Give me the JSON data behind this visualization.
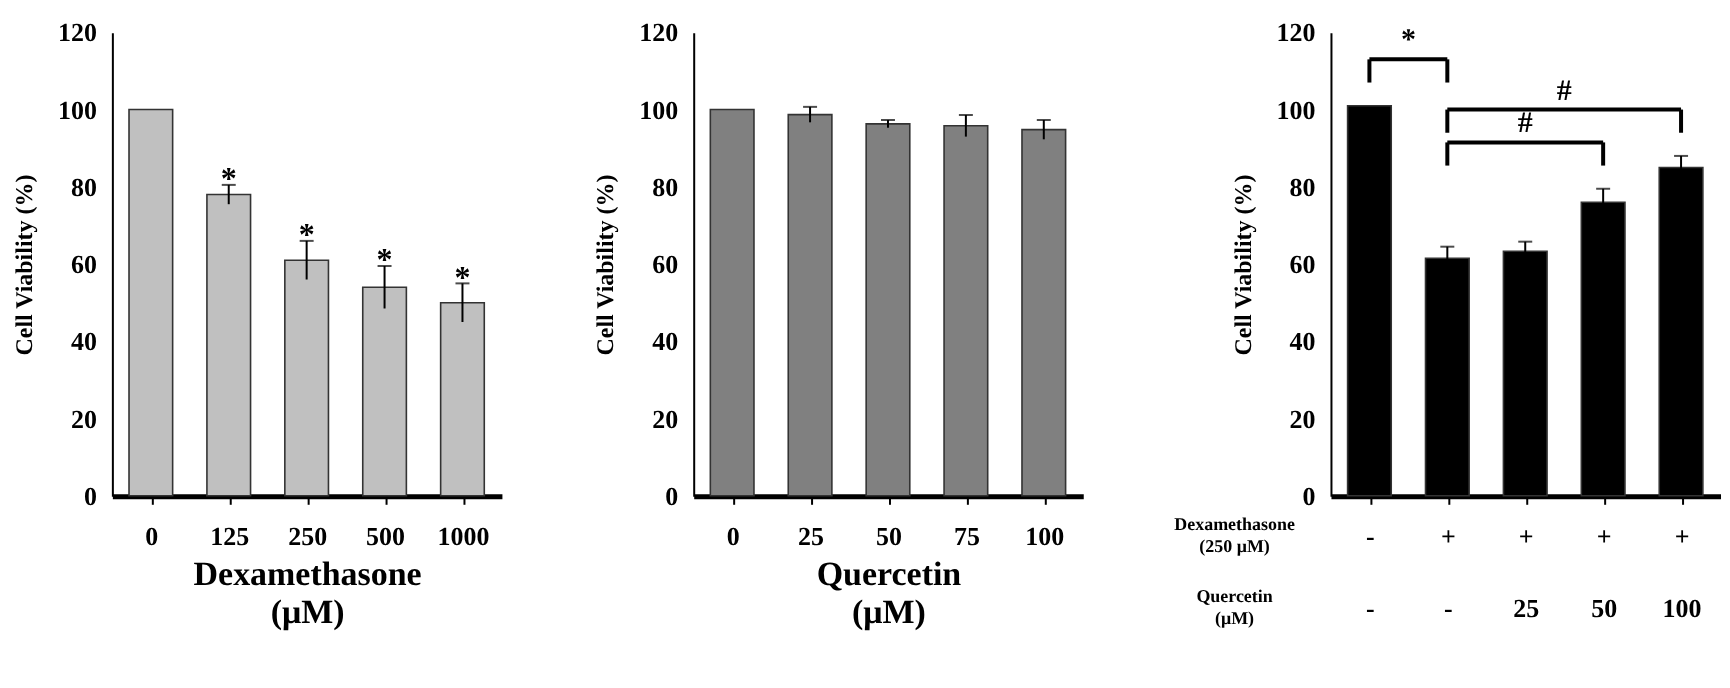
{
  "chart_data": [
    {
      "type": "bar",
      "categories": [
        "0",
        "125",
        "250",
        "500",
        "1000"
      ],
      "xlabel": "Dexamethasone\n(μM)",
      "ylabel": "Cell Viability (%)",
      "values": [
        100,
        78,
        61,
        54,
        50
      ],
      "errors": [
        null,
        2.5,
        5,
        5.5,
        5
      ],
      "color": "#c0c0c0",
      "ylim": [
        0,
        120
      ],
      "yticks": [
        0,
        20,
        40,
        60,
        80,
        100,
        120
      ],
      "grid": false,
      "annotations": [
        {
          "text": "*",
          "x": "125",
          "y": 82
        },
        {
          "text": "*",
          "x": "250",
          "y": 67.5
        },
        {
          "text": "*",
          "x": "500",
          "y": 61
        },
        {
          "text": "*",
          "x": "1000",
          "y": 56.5
        }
      ]
    },
    {
      "type": "bar",
      "categories": [
        "0",
        "25",
        "50",
        "75",
        "100"
      ],
      "xlabel": "Quercetin\n(μM)",
      "ylabel": "Cell Viability (%)",
      "values": [
        100,
        98.7,
        96.3,
        95.8,
        94.8
      ],
      "errors": [
        null,
        2,
        1,
        2.8,
        2.5
      ],
      "color": "#808080",
      "ylim": [
        0,
        120
      ],
      "yticks": [
        0,
        20,
        40,
        60,
        80,
        100,
        120
      ],
      "grid": false
    },
    {
      "type": "bar",
      "categories": [
        "-\n-",
        "+\n-",
        "+\n25",
        "+\n50",
        "+\n100"
      ],
      "ylabel": "Cell Viability (%)",
      "values": [
        101,
        61.5,
        63.3,
        76,
        85
      ],
      "errors": [
        null,
        3,
        2.5,
        3.5,
        3
      ],
      "color": "#000000",
      "ylim": [
        0,
        120
      ],
      "yticks": [
        0,
        20,
        40,
        60,
        80,
        100,
        120
      ],
      "grid": false,
      "annotations": [
        "*",
        "#",
        "#",
        "Dexamethasone\n(250 μM)",
        "Quercetin\n(μM)"
      ]
    }
  ]
}
